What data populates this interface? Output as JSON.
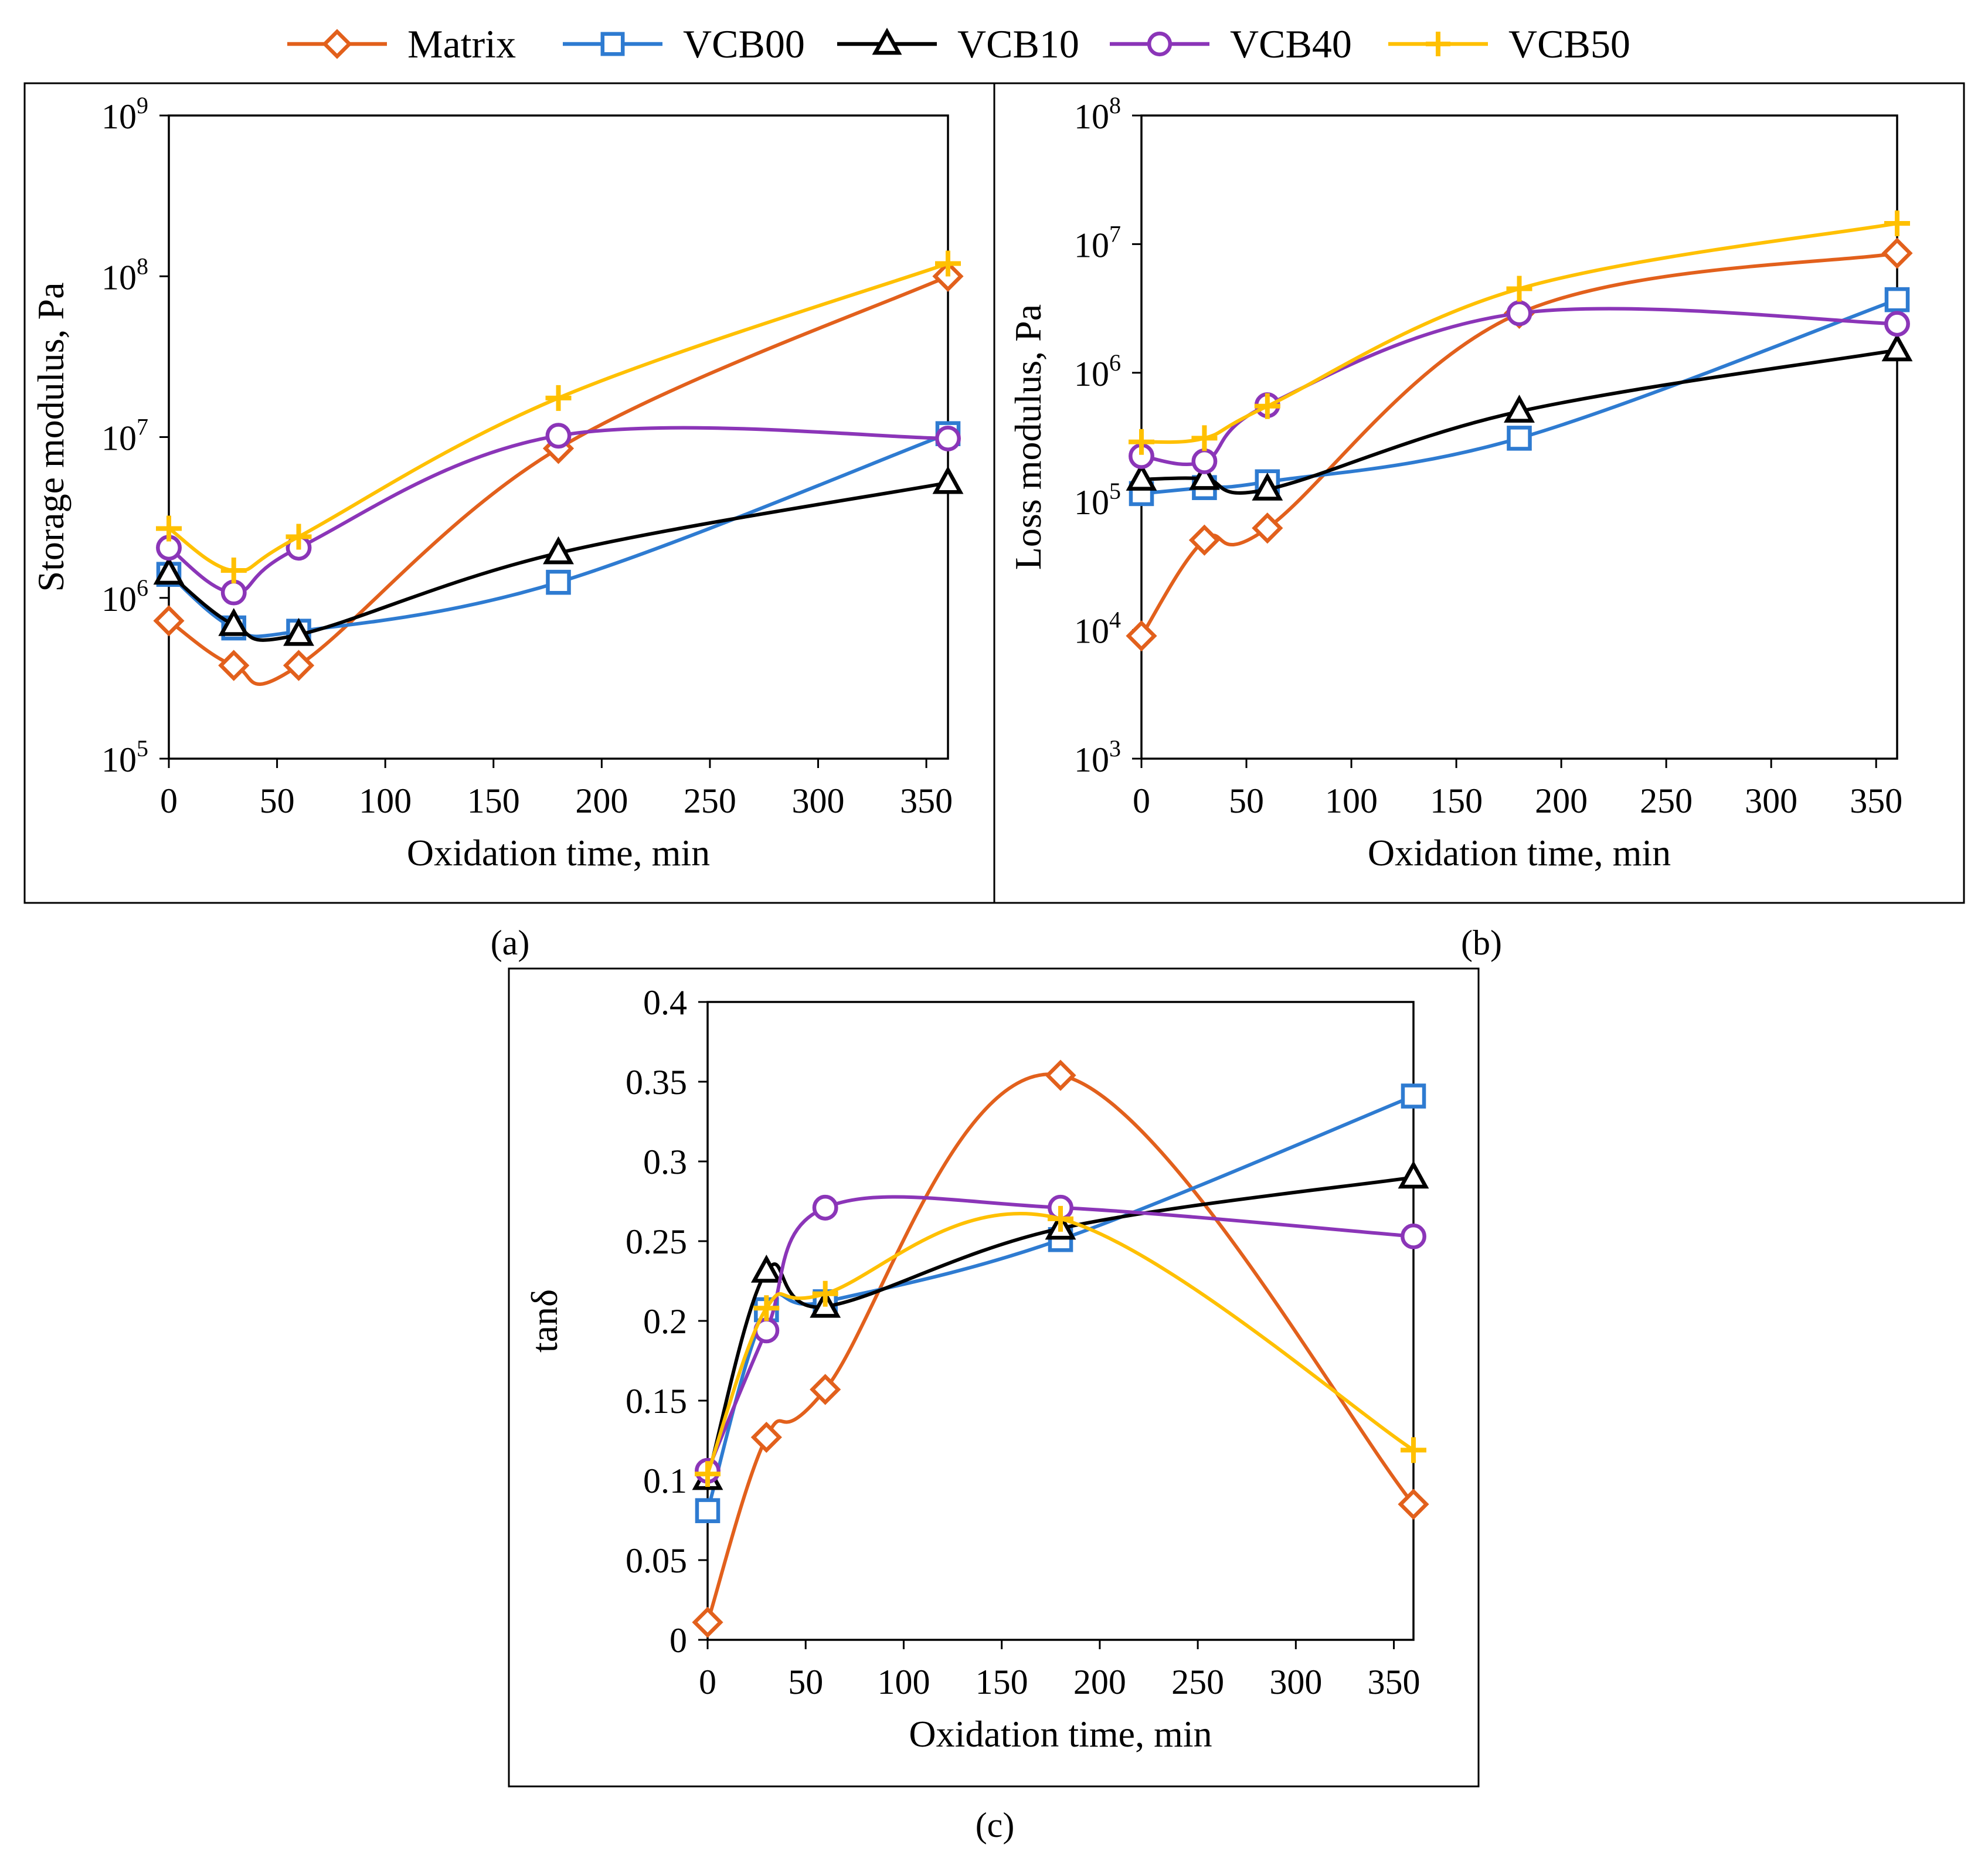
{
  "legend": [
    {
      "name": "Matrix",
      "color": "#E2601C",
      "marker": "diamond"
    },
    {
      "name": "VCB00",
      "color": "#2E7BD1",
      "marker": "square"
    },
    {
      "name": "VCB10",
      "color": "#000000",
      "marker": "triangle"
    },
    {
      "name": "VCB40",
      "color": "#8B35B8",
      "marker": "circle"
    },
    {
      "name": "VCB50",
      "color": "#FFC000",
      "marker": "plus"
    }
  ],
  "chart_data": [
    {
      "id": "a",
      "caption": "(a)",
      "type": "line",
      "yscale": "log",
      "xlabel": "Oxidation time, min",
      "ylabel": "Storage modulus, Pa",
      "xlim": [
        0,
        360
      ],
      "xticks": [
        "0",
        "50",
        "100",
        "150",
        "200",
        "250",
        "300",
        "350"
      ],
      "ylim_exp": [
        5,
        9
      ],
      "yticks": [
        {
          "base": "10",
          "exp": "5"
        },
        {
          "base": "10",
          "exp": "6"
        },
        {
          "base": "10",
          "exp": "7"
        },
        {
          "base": "10",
          "exp": "8"
        },
        {
          "base": "10",
          "exp": "9"
        }
      ],
      "x": [
        0,
        30,
        60,
        180,
        360
      ],
      "series": [
        {
          "name": "Matrix",
          "values": [
            720000,
            380000,
            380000,
            8500000,
            100000000
          ]
        },
        {
          "name": "VCB00",
          "values": [
            1400000,
            650000,
            620000,
            1250000,
            10500000
          ]
        },
        {
          "name": "VCB10",
          "values": [
            1420000,
            680000,
            590000,
            1900000,
            5200000
          ]
        },
        {
          "name": "VCB40",
          "values": [
            2050000,
            1080000,
            2050000,
            10200000,
            9800000
          ]
        },
        {
          "name": "VCB50",
          "values": [
            2700000,
            1480000,
            2400000,
            17500000,
            120000000
          ]
        }
      ]
    },
    {
      "id": "b",
      "caption": "(b)",
      "type": "line",
      "yscale": "log",
      "xlabel": "Oxidation time, min",
      "ylabel": "Loss modulus, Pa",
      "xlim": [
        0,
        360
      ],
      "xticks": [
        "0",
        "50",
        "100",
        "150",
        "200",
        "250",
        "300",
        "350"
      ],
      "ylim_exp": [
        3,
        8
      ],
      "yticks": [
        {
          "base": "10",
          "exp": "3"
        },
        {
          "base": "10",
          "exp": "4"
        },
        {
          "base": "10",
          "exp": "5"
        },
        {
          "base": "10",
          "exp": "6"
        },
        {
          "base": "10",
          "exp": "7"
        },
        {
          "base": "10",
          "exp": "8"
        }
      ],
      "x": [
        0,
        30,
        60,
        180,
        360
      ],
      "series": [
        {
          "name": "Matrix",
          "values": [
            9000,
            50000,
            62000,
            2900000,
            8500000
          ]
        },
        {
          "name": "VCB00",
          "values": [
            115000,
            128000,
            142000,
            310000,
            3700000
          ]
        },
        {
          "name": "VCB10",
          "values": [
            148000,
            150000,
            124000,
            500000,
            1500000
          ]
        },
        {
          "name": "VCB40",
          "values": [
            225000,
            205000,
            560000,
            2900000,
            2400000
          ]
        },
        {
          "name": "VCB50",
          "values": [
            290000,
            310000,
            550000,
            4500000,
            14500000
          ]
        }
      ]
    },
    {
      "id": "c",
      "caption": "(c)",
      "type": "line",
      "yscale": "linear",
      "xlabel": "Oxidation time, min",
      "ylabel": "tanδ",
      "xlim": [
        0,
        360
      ],
      "ylim": [
        0,
        0.4
      ],
      "xticks": [
        "0",
        "50",
        "100",
        "150",
        "200",
        "250",
        "300",
        "350"
      ],
      "yticks": [
        "0",
        "0.05",
        "0.1",
        "0.15",
        "0.2",
        "0.25",
        "0.3",
        "0.35",
        "0.4"
      ],
      "x": [
        0,
        30,
        60,
        180,
        360
      ],
      "series": [
        {
          "name": "Matrix",
          "values": [
            0.011,
            0.127,
            0.157,
            0.354,
            0.085
          ]
        },
        {
          "name": "VCB00",
          "values": [
            0.081,
            0.207,
            0.212,
            0.251,
            0.341
          ]
        },
        {
          "name": "VCB10",
          "values": [
            0.101,
            0.231,
            0.209,
            0.258,
            0.29
          ]
        },
        {
          "name": "VCB40",
          "values": [
            0.106,
            0.194,
            0.271,
            0.271,
            0.253
          ]
        },
        {
          "name": "VCB50",
          "values": [
            0.104,
            0.208,
            0.217,
            0.264,
            0.119
          ]
        }
      ]
    }
  ]
}
